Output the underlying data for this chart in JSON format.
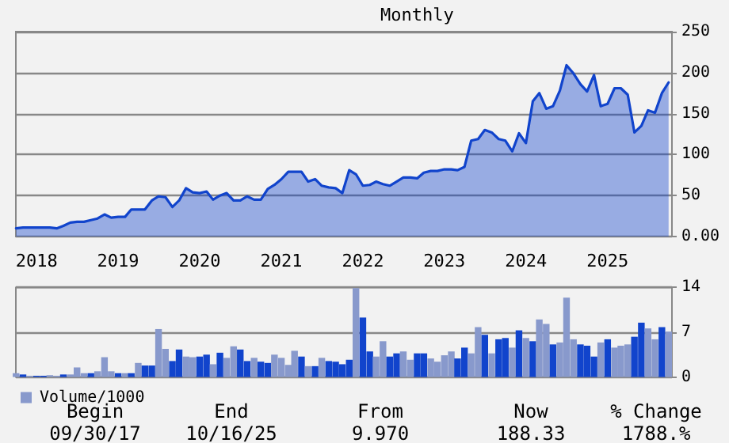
{
  "chart_data": [
    {
      "type": "area",
      "annotations": [
        "Monthly"
      ],
      "marker": "none",
      "line_style": "solid",
      "grid": "y",
      "x": [
        "2017-10",
        "2017-11",
        "2017-12",
        "2018-01",
        "2018-02",
        "2018-03",
        "2018-04",
        "2018-05",
        "2018-06",
        "2018-07",
        "2018-08",
        "2018-09",
        "2018-10",
        "2018-11",
        "2018-12",
        "2019-01",
        "2019-02",
        "2019-03",
        "2019-04",
        "2019-05",
        "2019-06",
        "2019-07",
        "2019-08",
        "2019-09",
        "2019-10",
        "2019-11",
        "2019-12",
        "2020-01",
        "2020-02",
        "2020-03",
        "2020-04",
        "2020-05",
        "2020-06",
        "2020-07",
        "2020-08",
        "2020-09",
        "2020-10",
        "2020-11",
        "2020-12",
        "2021-01",
        "2021-02",
        "2021-03",
        "2021-04",
        "2021-05",
        "2021-06",
        "2021-07",
        "2021-08",
        "2021-09",
        "2021-10",
        "2021-11",
        "2021-12",
        "2022-01",
        "2022-02",
        "2022-03",
        "2022-04",
        "2022-05",
        "2022-06",
        "2022-07",
        "2022-08",
        "2022-09",
        "2022-10",
        "2022-11",
        "2022-12",
        "2023-01",
        "2023-02",
        "2023-03",
        "2023-04",
        "2023-05",
        "2023-06",
        "2023-07",
        "2023-08",
        "2023-09",
        "2023-10",
        "2023-11",
        "2023-12",
        "2024-01",
        "2024-02",
        "2024-03",
        "2024-04",
        "2024-05",
        "2024-06",
        "2024-07",
        "2024-08",
        "2024-09",
        "2024-10",
        "2024-11",
        "2024-12",
        "2025-01",
        "2025-02",
        "2025-03",
        "2025-04",
        "2025-05",
        "2025-06",
        "2025-07",
        "2025-08",
        "2025-09",
        "2025-10"
      ],
      "series": [
        {
          "color": "#1144cc",
          "values": [
            10,
            11,
            11,
            11,
            11,
            11,
            10,
            13,
            17,
            18,
            18,
            20,
            22,
            27,
            23,
            24,
            24,
            33,
            33,
            33,
            44,
            49,
            48,
            36,
            44,
            59,
            54,
            53,
            55,
            45,
            50,
            53,
            44,
            44,
            49,
            45,
            45,
            58,
            63,
            70,
            79,
            79,
            79,
            67,
            70,
            62,
            60,
            59,
            53,
            81,
            76,
            62,
            63,
            67,
            64,
            62,
            67,
            72,
            72,
            71,
            78,
            80,
            80,
            82,
            82,
            81,
            85,
            117,
            119,
            130,
            127,
            119,
            117,
            104,
            126,
            114,
            165,
            175,
            156,
            159,
            178,
            209,
            199,
            186,
            177,
            197,
            159,
            162,
            181,
            181,
            173,
            127,
            135,
            154,
            151,
            175,
            188
          ]
        }
      ],
      "xlim": [
        "2017-09-30",
        "2025-10-16"
      ],
      "xticks": [
        "2018",
        "2019",
        "2020",
        "2021",
        "2022",
        "2023",
        "2024",
        "2025"
      ],
      "ylim": [
        0,
        250
      ],
      "yticks": [
        {
          "value": 0,
          "label": "0.00"
        },
        50,
        100,
        150,
        200,
        250
      ]
    },
    {
      "type": "bar",
      "tick_labels": "y",
      "legend": "bottom left",
      "grid": "y",
      "annotations": [
        "Begin",
        "End",
        "From",
        "Now",
        "% Change",
        "09/30/17",
        "10/16/25",
        "9.970",
        "188.33",
        "1788.%"
      ],
      "x": [
        "2017-10",
        "2017-11",
        "2017-12",
        "2018-01",
        "2018-02",
        "2018-03",
        "2018-04",
        "2018-05",
        "2018-06",
        "2018-07",
        "2018-08",
        "2018-09",
        "2018-10",
        "2018-11",
        "2018-12",
        "2019-01",
        "2019-02",
        "2019-03",
        "2019-04",
        "2019-05",
        "2019-06",
        "2019-07",
        "2019-08",
        "2019-09",
        "2019-10",
        "2019-11",
        "2019-12",
        "2020-01",
        "2020-02",
        "2020-03",
        "2020-04",
        "2020-05",
        "2020-06",
        "2020-07",
        "2020-08",
        "2020-09",
        "2020-10",
        "2020-11",
        "2020-12",
        "2021-01",
        "2021-02",
        "2021-03",
        "2021-04",
        "2021-05",
        "2021-06",
        "2021-07",
        "2021-08",
        "2021-09",
        "2021-10",
        "2021-11",
        "2021-12",
        "2022-01",
        "2022-02",
        "2022-03",
        "2022-04",
        "2022-05",
        "2022-06",
        "2022-07",
        "2022-08",
        "2022-09",
        "2022-10",
        "2022-11",
        "2022-12",
        "2023-01",
        "2023-02",
        "2023-03",
        "2023-04",
        "2023-05",
        "2023-06",
        "2023-07",
        "2023-08",
        "2023-09",
        "2023-10",
        "2023-11",
        "2023-12",
        "2024-01",
        "2024-02",
        "2024-03",
        "2024-04",
        "2024-05",
        "2024-06",
        "2024-07",
        "2024-08",
        "2024-09",
        "2024-10",
        "2024-11",
        "2024-12",
        "2025-01",
        "2025-02",
        "2025-03",
        "2025-04",
        "2025-05",
        "2025-06",
        "2025-07",
        "2025-08",
        "2025-09",
        "2025-10"
      ],
      "series": [
        {
          "name": "Volume/1000",
          "color": "#8899cc",
          "values": [
            0.6,
            0.4,
            0.2,
            0.2,
            0.2,
            0.3,
            0.2,
            0.4,
            0.4,
            1.5,
            0.6,
            0.6,
            0.9,
            3.1,
            0.9,
            0.6,
            0.6,
            0.6,
            2.2,
            1.8,
            1.8,
            7.5,
            4.4,
            2.5,
            4.3,
            3.2,
            3.1,
            3.2,
            3.5,
            2.0,
            3.8,
            3.0,
            4.8,
            4.3,
            2.5,
            3.0,
            2.4,
            2.2,
            3.5,
            3.0,
            1.9,
            4.1,
            3.2,
            1.7,
            1.7,
            3.0,
            2.5,
            2.4,
            2.0,
            2.7,
            13.9,
            9.3,
            4.0,
            3.2,
            5.6,
            3.2,
            3.7,
            4.0,
            2.7,
            3.7,
            3.7,
            2.9,
            2.4,
            3.4,
            4.0,
            2.9,
            4.6,
            3.7,
            7.8,
            6.6,
            3.7,
            5.9,
            6.1,
            4.6,
            7.3,
            6.1,
            5.6,
            9.0,
            8.3,
            5.1,
            5.4,
            12.4,
            5.9,
            5.1,
            4.9,
            3.2,
            5.4,
            5.9,
            4.6,
            4.9,
            5.1,
            6.3,
            8.5,
            7.6,
            5.9,
            7.8,
            7.1
          ],
          "colors": [
            "#8899cc",
            "#1144cc",
            "#8899cc",
            "#1144cc",
            "#1144cc",
            "#8899cc",
            "#8899cc",
            "#1144cc",
            "#8899cc",
            "#8899cc",
            "#8899cc",
            "#1144cc",
            "#8899cc",
            "#8899cc",
            "#8899cc",
            "#1144cc",
            "#8899cc",
            "#1144cc",
            "#8899cc",
            "#1144cc",
            "#1144cc",
            "#8899cc",
            "#8899cc",
            "#1144cc",
            "#1144cc",
            "#8899cc",
            "#8899cc",
            "#1144cc",
            "#1144cc",
            "#8899cc",
            "#1144cc",
            "#8899cc",
            "#8899cc",
            "#1144cc",
            "#1144cc",
            "#8899cc",
            "#1144cc",
            "#1144cc",
            "#8899cc",
            "#8899cc",
            "#8899cc",
            "#8899cc",
            "#1144cc",
            "#8899cc",
            "#1144cc",
            "#8899cc",
            "#1144cc",
            "#1144cc",
            "#1144cc",
            "#1144cc",
            "#8899cc",
            "#1144cc",
            "#1144cc",
            "#8899cc",
            "#8899cc",
            "#1144cc",
            "#1144cc",
            "#8899cc",
            "#8899cc",
            "#1144cc",
            "#1144cc",
            "#8899cc",
            "#8899cc",
            "#8899cc",
            "#8899cc",
            "#1144cc",
            "#1144cc",
            "#8899cc",
            "#8899cc",
            "#1144cc",
            "#8899cc",
            "#1144cc",
            "#1144cc",
            "#8899cc",
            "#1144cc",
            "#8899cc",
            "#1144cc",
            "#8899cc",
            "#8899cc",
            "#1144cc",
            "#8899cc",
            "#8899cc",
            "#8899cc",
            "#1144cc",
            "#1144cc",
            "#1144cc",
            "#8899cc",
            "#1144cc",
            "#8899cc",
            "#8899cc",
            "#8899cc",
            "#1144cc",
            "#1144cc",
            "#8899cc",
            "#8899cc",
            "#1144cc",
            "#8899cc"
          ]
        }
      ],
      "xlim": [
        "2017-09-30",
        "2025-10-16"
      ],
      "ylim": [
        0,
        14
      ],
      "yticks": [
        0,
        7,
        14
      ]
    }
  ]
}
